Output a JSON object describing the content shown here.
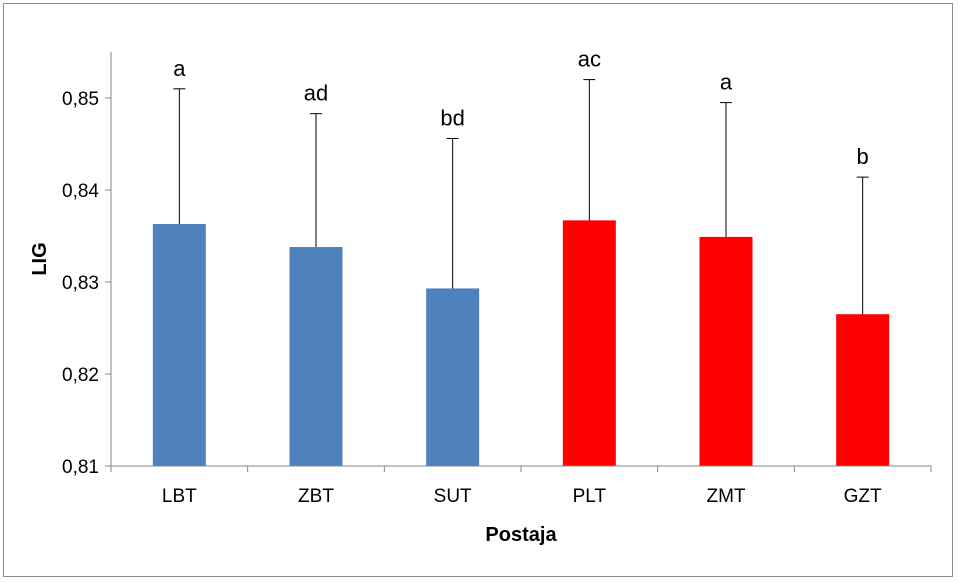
{
  "chart_data": {
    "type": "bar",
    "title": "",
    "xlabel": "Postaja",
    "ylabel": "LIG",
    "ylim": [
      0.81,
      0.855
    ],
    "yticks": [
      0.81,
      0.82,
      0.83,
      0.84,
      0.85
    ],
    "ytick_labels": [
      "0,81",
      "0,82",
      "0,83",
      "0,84",
      "0,85"
    ],
    "categories": [
      "LBT",
      "ZBT",
      "SUT",
      "PLT",
      "ZMT",
      "GZT"
    ],
    "values": [
      0.8363,
      0.8338,
      0.8293,
      0.8367,
      0.8349,
      0.8265
    ],
    "error_upper": [
      0.851,
      0.8483,
      0.8456,
      0.852,
      0.8495,
      0.8414
    ],
    "significance_labels": [
      "a",
      "ad",
      "bd",
      "ac",
      "a",
      "b"
    ],
    "bar_colors": [
      "#4f81bd",
      "#4f81bd",
      "#4f81bd",
      "#ff0000",
      "#ff0000",
      "#ff0000"
    ],
    "grid": false,
    "legend": "none"
  }
}
